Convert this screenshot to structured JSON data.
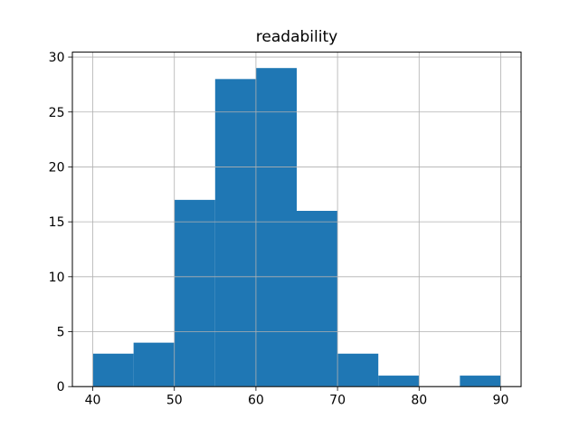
{
  "chart_data": {
    "type": "bar",
    "subtype": "histogram",
    "title": "readability",
    "xlabel": "",
    "ylabel": "",
    "bin_edges": [
      40,
      45,
      50,
      55,
      60,
      65,
      70,
      75,
      80,
      85,
      90
    ],
    "counts": [
      3,
      4,
      17,
      28,
      29,
      16,
      3,
      1,
      0,
      1
    ],
    "xticks": [
      40,
      50,
      60,
      70,
      80,
      90
    ],
    "yticks": [
      0,
      5,
      10,
      15,
      20,
      25,
      30
    ],
    "xlim": [
      37.5,
      92.5
    ],
    "ylim": [
      0,
      30.45
    ],
    "grid": true,
    "legend": false,
    "bar_color": "#1f77b4",
    "grid_color": "#b0b0b0",
    "axis_color": "#000000",
    "background_color": "#ffffff"
  }
}
